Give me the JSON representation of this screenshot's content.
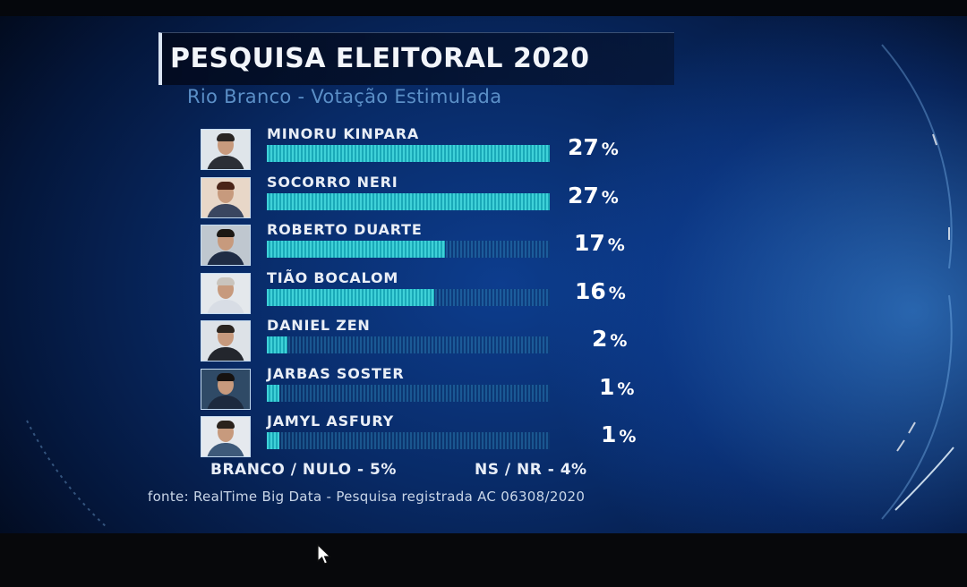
{
  "title": "PESQUISA ELEITORAL 2020",
  "subtitle": "Rio Branco - Votação Estimulada",
  "chart_data": {
    "type": "bar",
    "title": "PESQUISA ELEITORAL 2020",
    "subtitle": "Rio Branco - Votação Estimulada",
    "orientation": "horizontal",
    "max": 27,
    "categories": [
      "MINORU KINPARA",
      "SOCORRO NERI",
      "ROBERTO DUARTE",
      "TIÃO BOCALOM",
      "DANIEL ZEN",
      "JARBAS SOSTER",
      "JAMYL ASFURY"
    ],
    "values": [
      27,
      27,
      17,
      16,
      2,
      1,
      1
    ],
    "value_labels": [
      "27",
      "27",
      "17",
      "16",
      "2",
      "1",
      "1"
    ],
    "unit": "%",
    "colors": {
      "bar": "#2cc3cc",
      "track": "#1b5c8e"
    }
  },
  "avatars": [
    {
      "bg": "#dfe5ea",
      "body": "#2b2f36",
      "hair": "#2a2624"
    },
    {
      "bg": "#e8d7c8",
      "body": "#3a4660",
      "hair": "#4a2418"
    },
    {
      "bg": "#bfc7cf",
      "body": "#1f2c45",
      "hair": "#1c1814"
    },
    {
      "bg": "#e4e8ec",
      "body": "#d8dde5",
      "hair": "#c9c4bd"
    },
    {
      "bg": "#dde2e7",
      "body": "#23262d",
      "hair": "#2b2520"
    },
    {
      "bg": "#2f4a66",
      "body": "#1d2a3e",
      "hair": "#161210"
    },
    {
      "bg": "#e5e9ee",
      "body": "#3e5a7a",
      "hair": "#2a221c"
    }
  ],
  "footer": {
    "blank_null": "BRANCO / NULO - 5%",
    "ns_nr": "NS / NR - 4%"
  },
  "source": "fonte: RealTime Big Data - Pesquisa registrada AC 06308/2020"
}
